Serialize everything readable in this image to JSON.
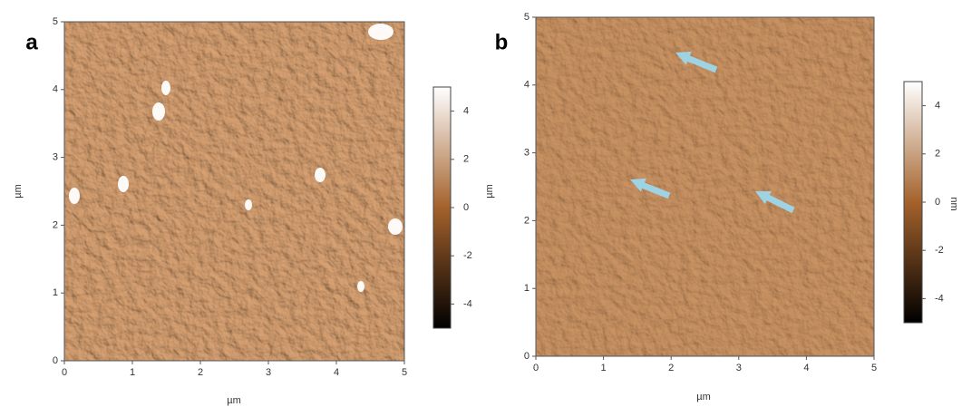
{
  "chart_data": [
    {
      "type": "image",
      "panel_label": "a",
      "xlabel": "µm",
      "ylabel": "µm",
      "xlim": [
        0,
        5
      ],
      "ylim": [
        0,
        5
      ],
      "xticks": [
        0,
        1,
        2,
        3,
        4,
        5
      ],
      "yticks": [
        0,
        1,
        2,
        3,
        4,
        5
      ],
      "colorbar": {
        "lim": [
          -5,
          5
        ],
        "ticks": [
          4,
          2,
          0,
          -2,
          -4
        ],
        "colors": [
          "#000000",
          "#a4622c",
          "#ffffff"
        ]
      }
    },
    {
      "type": "image",
      "panel_label": "b",
      "xlabel": "µm",
      "ylabel": "µm",
      "xlim": [
        0,
        5
      ],
      "ylim": [
        0,
        5
      ],
      "xticks": [
        0,
        1,
        2,
        3,
        4,
        5
      ],
      "yticks": [
        0,
        1,
        2,
        3,
        4,
        5
      ],
      "colorbar": {
        "lim": [
          -5,
          5
        ],
        "ticks": [
          4,
          2,
          0,
          -2,
          -4
        ],
        "label": "nm",
        "colors": [
          "#000000",
          "#a4622c",
          "#ffffff"
        ]
      }
    }
  ]
}
